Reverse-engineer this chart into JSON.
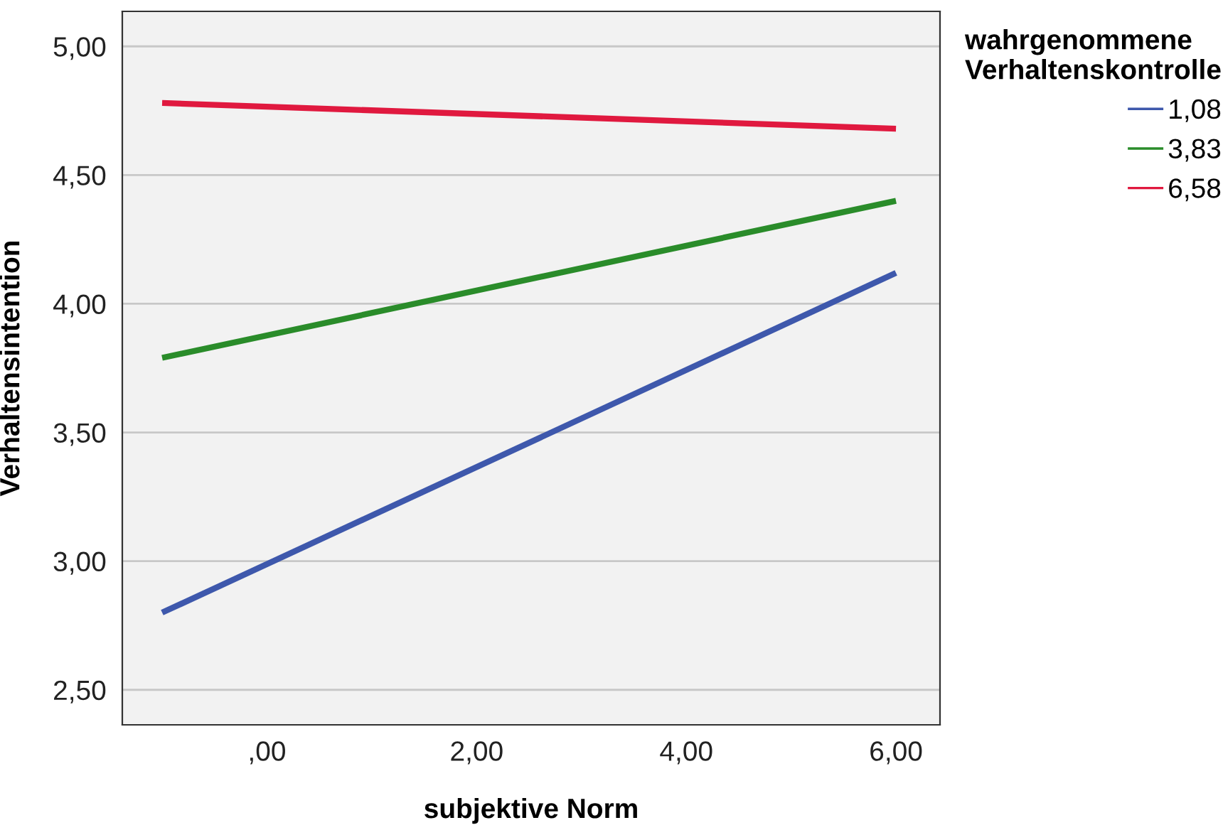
{
  "chart_data": {
    "type": "line",
    "xlabel": "subjektive Norm",
    "ylabel": "Verhaltensintention",
    "legend_title": "wahrgenommene\nVerhaltenskontrolle",
    "x": [
      -1.0,
      6.0
    ],
    "series": [
      {
        "name": "1,08",
        "color": "#3e58ac",
        "values": [
          2.8,
          4.12
        ]
      },
      {
        "name": "3,83",
        "color": "#2a8c2a",
        "values": [
          3.79,
          4.4
        ]
      },
      {
        "name": "6,58",
        "color": "#e0193f",
        "values": [
          4.78,
          4.68
        ]
      }
    ],
    "xlim": [
      -1.38,
      6.42
    ],
    "xticks": [
      {
        "value": 0,
        "label": ",00"
      },
      {
        "value": 2,
        "label": "2,00"
      },
      {
        "value": 4,
        "label": "4,00"
      },
      {
        "value": 6,
        "label": "6,00"
      }
    ],
    "ylim": [
      2.364,
      5.136
    ],
    "yticks": [
      {
        "value": 2.5,
        "label": "2,50"
      },
      {
        "value": 3,
        "label": "3,00"
      },
      {
        "value": 3.5,
        "label": "3,50"
      },
      {
        "value": 4,
        "label": "4,00"
      },
      {
        "value": 4.5,
        "label": "4,50"
      },
      {
        "value": 5,
        "label": "5,00"
      }
    ],
    "grid": "y",
    "legend": "top right",
    "marker": "none",
    "line_style": "solid"
  }
}
